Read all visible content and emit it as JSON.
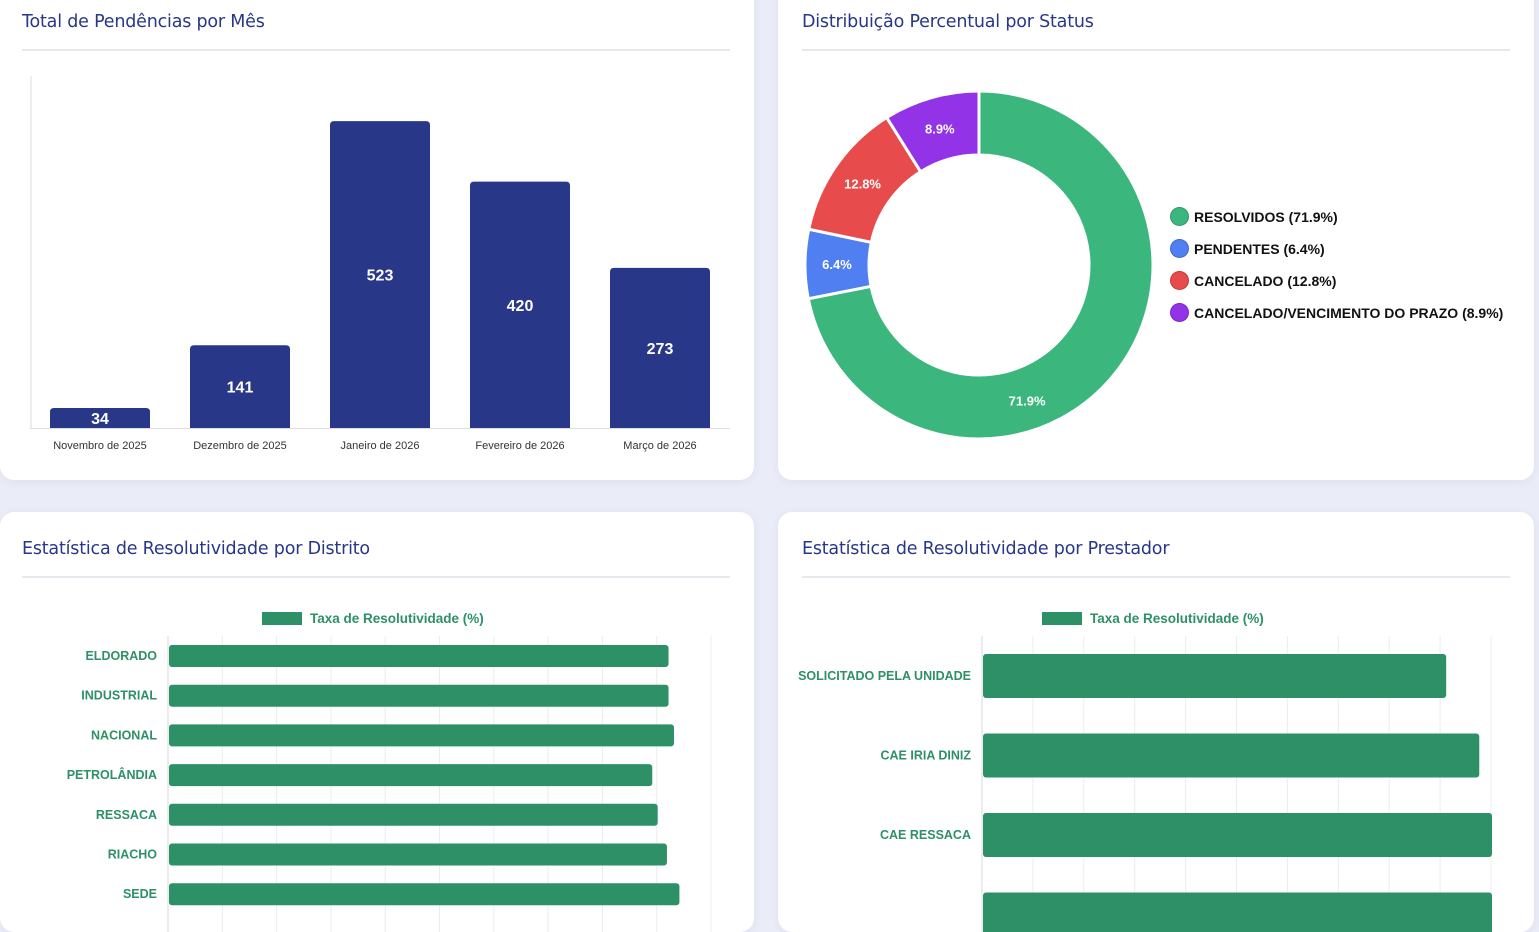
{
  "colors": {
    "navy": "#283787",
    "green": "#2d9066",
    "text_dark": "#111111",
    "axis_text": "#333333",
    "grid": "#ececec",
    "background": "#eaecf7"
  },
  "cards": {
    "monthly": {
      "title": "Total de Pendências por Mês"
    },
    "status": {
      "title": "Distribuição Percentual por Status"
    },
    "district": {
      "title": "Estatística de Resolutividade por Distrito"
    },
    "provider": {
      "title": "Estatística de Resolutividade por Prestador"
    }
  },
  "chart_data": [
    {
      "type": "bar",
      "categories": [
        "Novembro de 2025",
        "Dezembro de 2025",
        "Janeiro de 2026",
        "Fevereiro de 2026",
        "Março de 2026"
      ],
      "values": [
        34,
        141,
        523,
        420,
        273
      ],
      "data_labels": [
        "34",
        "141",
        "523",
        "420",
        "273"
      ],
      "ylim": [
        0,
        600
      ],
      "color": "#283787",
      "grid": false
    },
    {
      "type": "pie",
      "donut": true,
      "legend_position": "right",
      "categories": [
        "RESOLVIDOS",
        "PENDENTES",
        "CANCELADO",
        "CANCELADO/VENCIMENTO DO PRAZO"
      ],
      "values": [
        71.9,
        6.4,
        12.8,
        8.9
      ],
      "slice_labels": [
        "71.9%",
        "6.4%",
        "12.8%",
        "8.9%"
      ],
      "legend_labels": [
        "RESOLVIDOS (71.9%)",
        "PENDENTES (6.4%)",
        "CANCELADO (12.8%)",
        "CANCELADO/VENCIMENTO DO PRAZO (8.9%)"
      ],
      "colors": [
        "#3bb77e",
        "#4f7ff0",
        "#e84b4b",
        "#9233e8"
      ]
    },
    {
      "type": "bar",
      "orientation": "horizontal",
      "categories": [
        "ELDORADO",
        "INDUSTRIAL",
        "NACIONAL",
        "PETROLÂNDIA",
        "RESSACA",
        "RIACHO",
        "SEDE"
      ],
      "series": [
        {
          "name": "Taxa de Resolutividade (%)",
          "values": [
            92,
            92,
            93,
            89,
            90,
            91.7,
            94
          ]
        }
      ],
      "xlim": [
        0,
        100
      ],
      "grid": true,
      "legend_position": "top",
      "color": "#2d9066"
    },
    {
      "type": "bar",
      "orientation": "horizontal",
      "categories": [
        "SOLICITADO PELA UNIDADE",
        "CAE IRIA DINIZ",
        "CAE RESSACA",
        ""
      ],
      "series": [
        {
          "name": "Taxa de Resolutividade (%)",
          "values": [
            91,
            97.5,
            100,
            100
          ]
        }
      ],
      "xlim": [
        0,
        100
      ],
      "grid": true,
      "legend_position": "top",
      "color": "#2d9066"
    }
  ]
}
